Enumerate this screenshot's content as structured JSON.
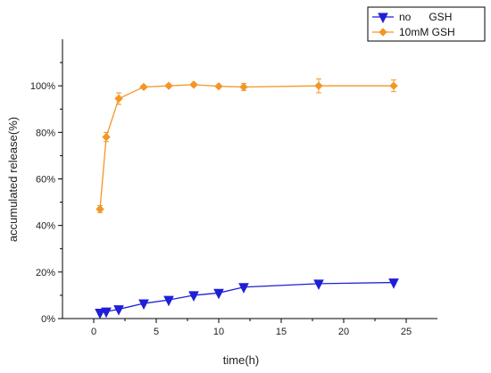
{
  "chart_data": {
    "type": "line",
    "xlabel": "time(h)",
    "ylabel": "accumulated release(%)",
    "xlim": [
      -2.5,
      27.5
    ],
    "ylim": [
      0,
      1.2
    ],
    "x_ticks": [
      0,
      5,
      10,
      15,
      20,
      25
    ],
    "y_ticks": [
      0,
      0.2,
      0.4,
      0.6,
      0.8,
      1.0
    ],
    "y_tick_labels": [
      "0%",
      "20%",
      "40%",
      "60%",
      "80%",
      "100%"
    ],
    "grid": false,
    "legend_position": "top-right",
    "series": [
      {
        "name": "no      GSH",
        "color": "#1f1fd6",
        "marker": "triangle-down",
        "x": [
          0.5,
          1,
          2,
          4,
          6,
          8,
          10,
          12,
          18,
          24
        ],
        "y": [
          0.025,
          0.03,
          0.04,
          0.065,
          0.08,
          0.1,
          0.11,
          0.135,
          0.15,
          0.155
        ],
        "err": [
          0.005,
          0.005,
          0.005,
          0.005,
          0.005,
          0.006,
          0.006,
          0.005,
          0.005,
          0.005
        ]
      },
      {
        "name": "10mM GSH",
        "color": "#f29727",
        "marker": "diamond",
        "x": [
          0.5,
          1,
          2,
          4,
          6,
          8,
          10,
          12,
          18,
          24
        ],
        "y": [
          0.47,
          0.78,
          0.945,
          0.995,
          1.0,
          1.005,
          0.998,
          0.995,
          1.0,
          1.0
        ],
        "err": [
          0.015,
          0.02,
          0.025,
          0.006,
          0.006,
          0.006,
          0.006,
          0.015,
          0.03,
          0.025
        ]
      }
    ]
  }
}
